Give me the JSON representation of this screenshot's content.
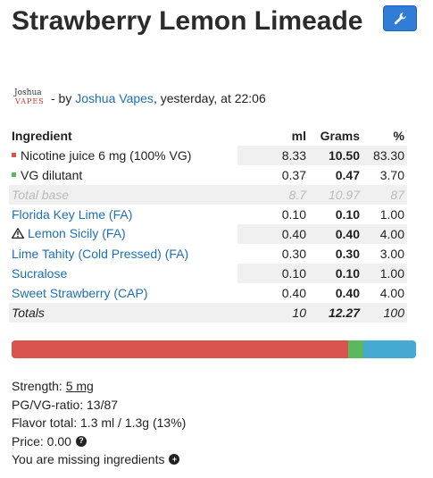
{
  "title": "Strawberry Lemon Limeade",
  "byline": {
    "avatar_top": "Joshua",
    "avatar_bottom": "VAPES",
    "prefix": "- by",
    "author": "Joshua Vapes",
    "suffix": ", yesterday, at 22:06"
  },
  "table": {
    "headers": {
      "ingredient": "Ingredient",
      "ml": "ml",
      "grams": "Grams",
      "pct": "%"
    },
    "base_rows": [
      {
        "name": "Nicotine juice 6 mg (100% VG)",
        "ml": "8.33",
        "grams": "10.50",
        "pct": "83.30",
        "color": "#d9534f"
      },
      {
        "name": "VG dilutant",
        "ml": "0.37",
        "grams": "0.47",
        "pct": "3.70",
        "color": "#5cb85c"
      }
    ],
    "total_base": {
      "label": "Total base",
      "ml": "8.7",
      "grams": "10.97",
      "pct": "87"
    },
    "flavor_rows": [
      {
        "name": "Florida Key Lime (FA)",
        "ml": "0.10",
        "grams": "0.10",
        "pct": "1.00",
        "warning": false
      },
      {
        "name": "Lemon Sicily (FA)",
        "ml": "0.40",
        "grams": "0.40",
        "pct": "4.00",
        "warning": true
      },
      {
        "name": "Lime Tahity (Cold Pressed) (FA)",
        "ml": "0.30",
        "grams": "0.30",
        "pct": "3.00",
        "warning": false
      },
      {
        "name": "Sucralose",
        "ml": "0.10",
        "grams": "0.10",
        "pct": "1.00",
        "warning": false
      },
      {
        "name": "Sweet Strawberry (CAP)",
        "ml": "0.40",
        "grams": "0.40",
        "pct": "4.00",
        "warning": false
      }
    ],
    "totals": {
      "label": "Totals",
      "ml": "10",
      "grams": "12.27",
      "pct": "100"
    }
  },
  "composition_bar": [
    {
      "part": "nicotine",
      "pct": 83.3,
      "color": "#d9534f"
    },
    {
      "part": "vg",
      "pct": 3.7,
      "color": "#5cb85c"
    },
    {
      "part": "flavor",
      "pct": 13,
      "color": "#46a9d1"
    }
  ],
  "info": {
    "strength_label": "Strength: ",
    "strength_value": "5 mg",
    "ratio": "PG/VG-ratio: 13/87",
    "flavor_total": "Flavor total: 1.3 ml / 1.3g (13%)",
    "price": "Price: 0.00",
    "missing": "You are missing ingredients"
  },
  "icons": {
    "edit": "wrench-icon",
    "help": "question-circle-icon",
    "add": "plus-circle-icon",
    "warning": "warning-icon"
  }
}
